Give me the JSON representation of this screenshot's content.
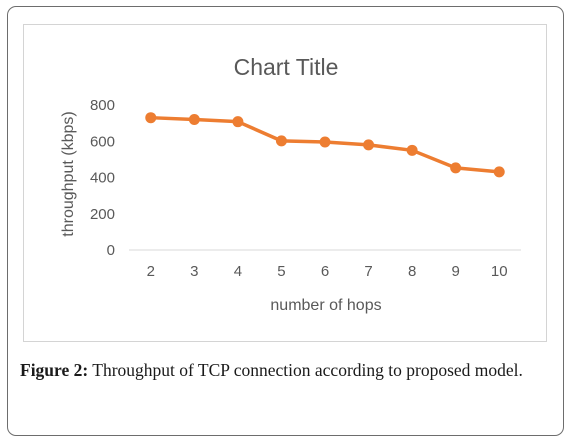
{
  "chart_data": {
    "type": "line",
    "title": "Chart Title",
    "xlabel": "number of hops",
    "ylabel": "throughput (kbps)",
    "categories": [
      "2",
      "3",
      "4",
      "5",
      "6",
      "7",
      "8",
      "9",
      "10"
    ],
    "series": [
      {
        "values": [
          730,
          720,
          708,
          602,
          596,
          580,
          550,
          453,
          431
        ]
      }
    ],
    "ylim": [
      0,
      800
    ],
    "yticks": [
      "0",
      "200",
      "400",
      "600",
      "800"
    ],
    "grid": false,
    "legend": "none",
    "series_color": "#ED7D31"
  },
  "caption": {
    "label": "Figure 2:",
    "text": "Throughput of TCP connection according to proposed model."
  }
}
